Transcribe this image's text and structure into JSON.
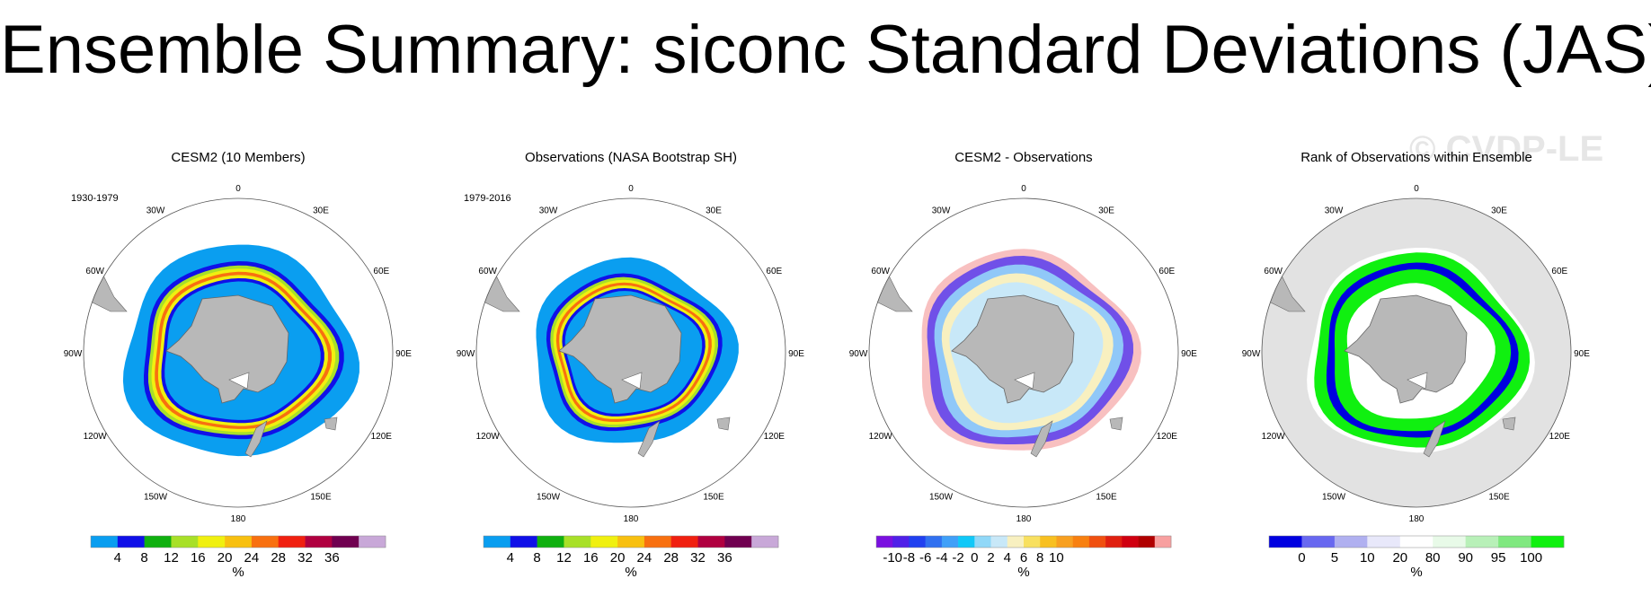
{
  "title": "Ensemble Summary: siconc Standard Deviations (JAS)",
  "watermark": "© CVDP-LE",
  "lon_labels": [
    "0",
    "30E",
    "60E",
    "90E",
    "120E",
    "150E",
    "180",
    "150W",
    "120W",
    "90W",
    "60W",
    "30W"
  ],
  "panels": [
    {
      "title": "CESM2 (10 Members)",
      "title_color": "#5f8f5f",
      "period": "1930-1979",
      "colorbar": {
        "colors": [
          "#0a9ef0",
          "#1010e8",
          "#10b010",
          "#a8e028",
          "#f0f010",
          "#f8c010",
          "#f87010",
          "#f02010",
          "#b00040",
          "#700050",
          "#c8a8d8"
        ],
        "labels": [
          "4",
          "8",
          "12",
          "16",
          "20",
          "24",
          "28",
          "32",
          "36"
        ],
        "unit": "%"
      }
    },
    {
      "title": "Observations (NASA Bootstrap SH)",
      "title_color": "#000000",
      "period": "1979-2016",
      "colorbar": {
        "colors": [
          "#0a9ef0",
          "#1010e8",
          "#10b010",
          "#a8e028",
          "#f0f010",
          "#f8c010",
          "#f87010",
          "#f02010",
          "#b00040",
          "#700050",
          "#c8a8d8"
        ],
        "labels": [
          "4",
          "8",
          "12",
          "16",
          "20",
          "24",
          "28",
          "32",
          "36"
        ],
        "unit": "%"
      }
    },
    {
      "title": "CESM2 - Observations",
      "title_color": "#000000",
      "period": "",
      "colorbar": {
        "colors": [
          "#7a10e0",
          "#5020e8",
          "#2040f0",
          "#3070f0",
          "#40a0f8",
          "#10c8f8",
          "#90d8f8",
          "#c8e8f8",
          "#f8f0c0",
          "#f8e060",
          "#f8c020",
          "#f8a020",
          "#f88010",
          "#f05010",
          "#e02010",
          "#d00010",
          "#b00000",
          "#f8a0a0"
        ],
        "labels": [
          "-10",
          "-8",
          "-6",
          "-4",
          "-2",
          "0",
          "2",
          "4",
          "6",
          "8",
          "10"
        ],
        "unit": "%"
      }
    },
    {
      "title": "Rank of Observations within Ensemble",
      "title_color": "#000000",
      "period": "",
      "colorbar": {
        "colors": [
          "#0000e0",
          "#6868f0",
          "#b0b0f0",
          "#e8e8fa",
          "#ffffff",
          "#e8fae8",
          "#b8f0b8",
          "#80e880",
          "#10f010"
        ],
        "labels": [
          "0",
          "5",
          "10",
          "20",
          "80",
          "90",
          "95",
          "100"
        ],
        "unit": "%"
      }
    }
  ]
}
